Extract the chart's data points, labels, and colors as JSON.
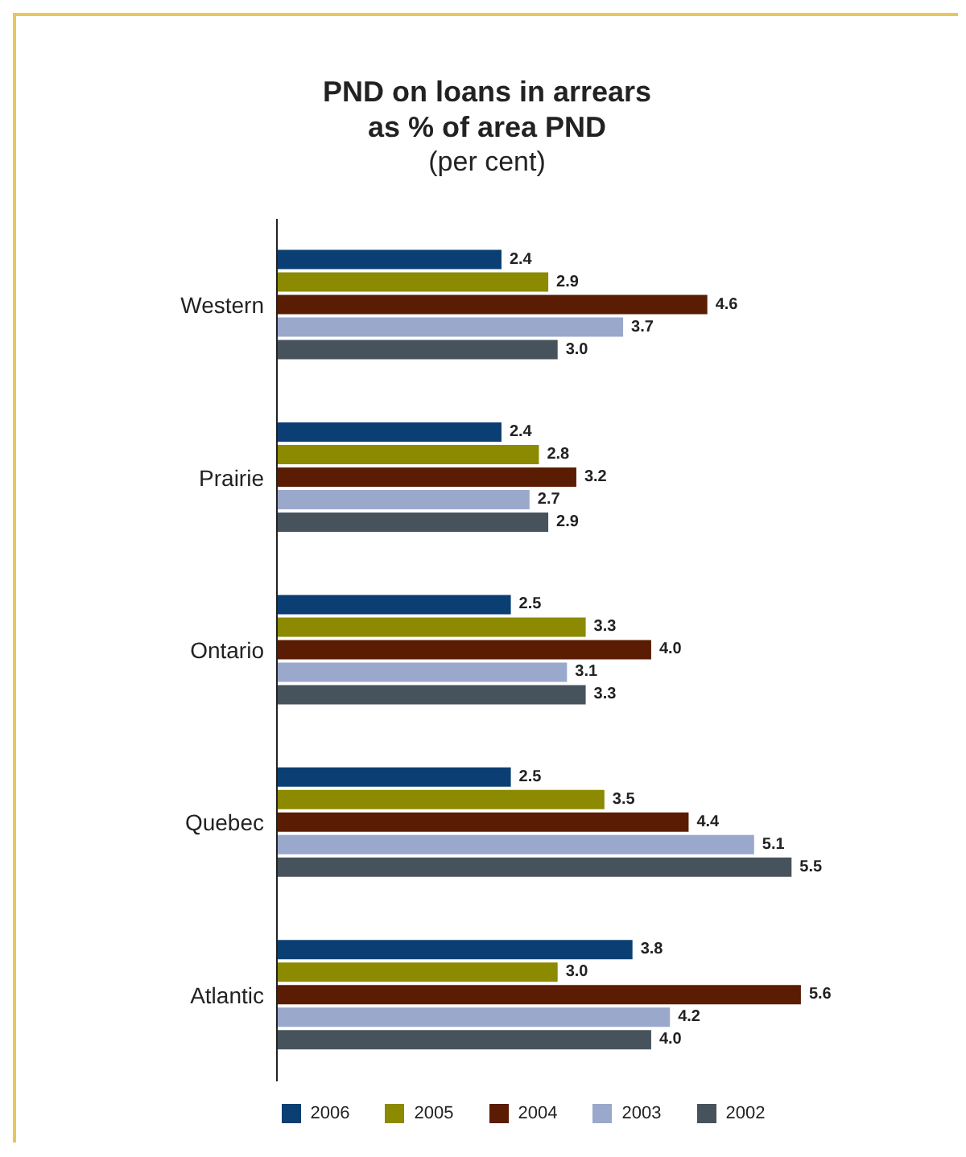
{
  "chart_data": {
    "type": "bar",
    "orientation": "horizontal",
    "title": "PND on loans in arrears\nas % of area PND",
    "subtitle": "(per cent)",
    "categories": [
      "Western",
      "Prairie",
      "Ontario",
      "Quebec",
      "Atlantic"
    ],
    "series": [
      {
        "name": "2006",
        "color": "#0b3f73",
        "values": [
          2.4,
          2.4,
          2.5,
          2.5,
          3.8
        ],
        "value_labels": [
          "2.4",
          "2.4",
          "2.5",
          "2.5",
          "3.8"
        ]
      },
      {
        "name": "2005",
        "color": "#8c8a00",
        "values": [
          2.9,
          2.8,
          3.3,
          3.5,
          3.0
        ],
        "value_labels": [
          "2.9",
          "2.8",
          "3.3",
          "3.5",
          "3.0"
        ]
      },
      {
        "name": "2004",
        "color": "#5a1c02",
        "values": [
          4.6,
          3.2,
          4.0,
          4.4,
          5.6
        ],
        "value_labels": [
          "4.6",
          "3.2",
          "4.0",
          "4.4",
          "5.6"
        ]
      },
      {
        "name": "2003",
        "color": "#9aa8cc",
        "values": [
          3.7,
          2.7,
          3.1,
          5.1,
          4.2
        ],
        "value_labels": [
          "3.7",
          "2.7",
          "3.1",
          "5.1",
          "4.2"
        ]
      },
      {
        "name": "2002",
        "color": "#47535c",
        "values": [
          3.0,
          2.9,
          3.3,
          5.5,
          4.0
        ],
        "value_labels": [
          "3.0",
          "2.9",
          "3.3",
          "5.5",
          "4.0"
        ]
      }
    ],
    "legend": "bottom"
  }
}
